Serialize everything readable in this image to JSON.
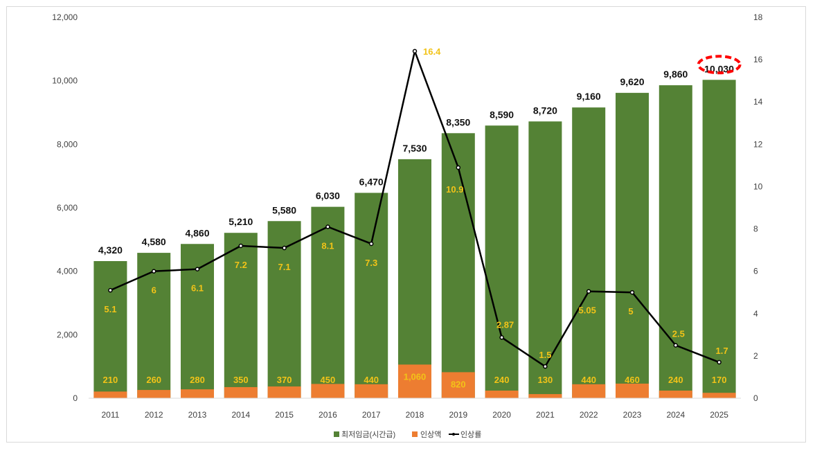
{
  "chart_data": {
    "type": "bar",
    "categories": [
      "2011",
      "2012",
      "2013",
      "2014",
      "2015",
      "2016",
      "2017",
      "2018",
      "2019",
      "2020",
      "2021",
      "2022",
      "2023",
      "2024",
      "2025"
    ],
    "series": [
      {
        "name": "최저임금(시간급)",
        "kind": "bar",
        "axis": "left",
        "color": "#548235",
        "values": [
          4320,
          4580,
          4860,
          5210,
          5580,
          6030,
          6470,
          7530,
          8350,
          8590,
          8720,
          9160,
          9620,
          9860,
          10030
        ],
        "labels": [
          "4,320",
          "4,580",
          "4,860",
          "5,210",
          "5,580",
          "6,030",
          "6,470",
          "7,530",
          "8,350",
          "8,590",
          "8,720",
          "9,160",
          "9,620",
          "9,860",
          "10,030"
        ]
      },
      {
        "name": "인상액",
        "kind": "bar",
        "axis": "left",
        "color": "#ed7d31",
        "values": [
          210,
          260,
          280,
          350,
          370,
          450,
          440,
          1060,
          820,
          240,
          130,
          440,
          460,
          240,
          170
        ],
        "labels": [
          "210",
          "260",
          "280",
          "350",
          "370",
          "450",
          "440",
          "1,060",
          "820",
          "240",
          "130",
          "440",
          "460",
          "240",
          "170"
        ]
      },
      {
        "name": "인상률",
        "kind": "line",
        "axis": "right",
        "color": "#000000",
        "values": [
          5.1,
          6,
          6.1,
          7.2,
          7.1,
          8.1,
          7.3,
          16.4,
          10.9,
          2.87,
          1.5,
          5.05,
          5,
          2.5,
          1.7
        ],
        "labels": [
          "5.1",
          "6",
          "6.1",
          "7.2",
          "7.1",
          "8.1",
          "7.3",
          "16.4",
          "10.9",
          "2.87",
          "1.5",
          "5.05",
          "5",
          "2.5",
          "1.7"
        ]
      }
    ],
    "y_left": {
      "min": 0,
      "max": 12000,
      "ticks": [
        "0",
        "2,000",
        "4,000",
        "6,000",
        "8,000",
        "10,000",
        "12,000"
      ]
    },
    "y_right": {
      "min": 0,
      "max": 18,
      "ticks": [
        "0",
        "2",
        "4",
        "6",
        "8",
        "10",
        "12",
        "14",
        "16",
        "18"
      ]
    },
    "label_color": "#f2c318",
    "highlight_color": "#ff0000",
    "highlight_category": "2025",
    "grid": false,
    "legend_position": "bottom"
  }
}
